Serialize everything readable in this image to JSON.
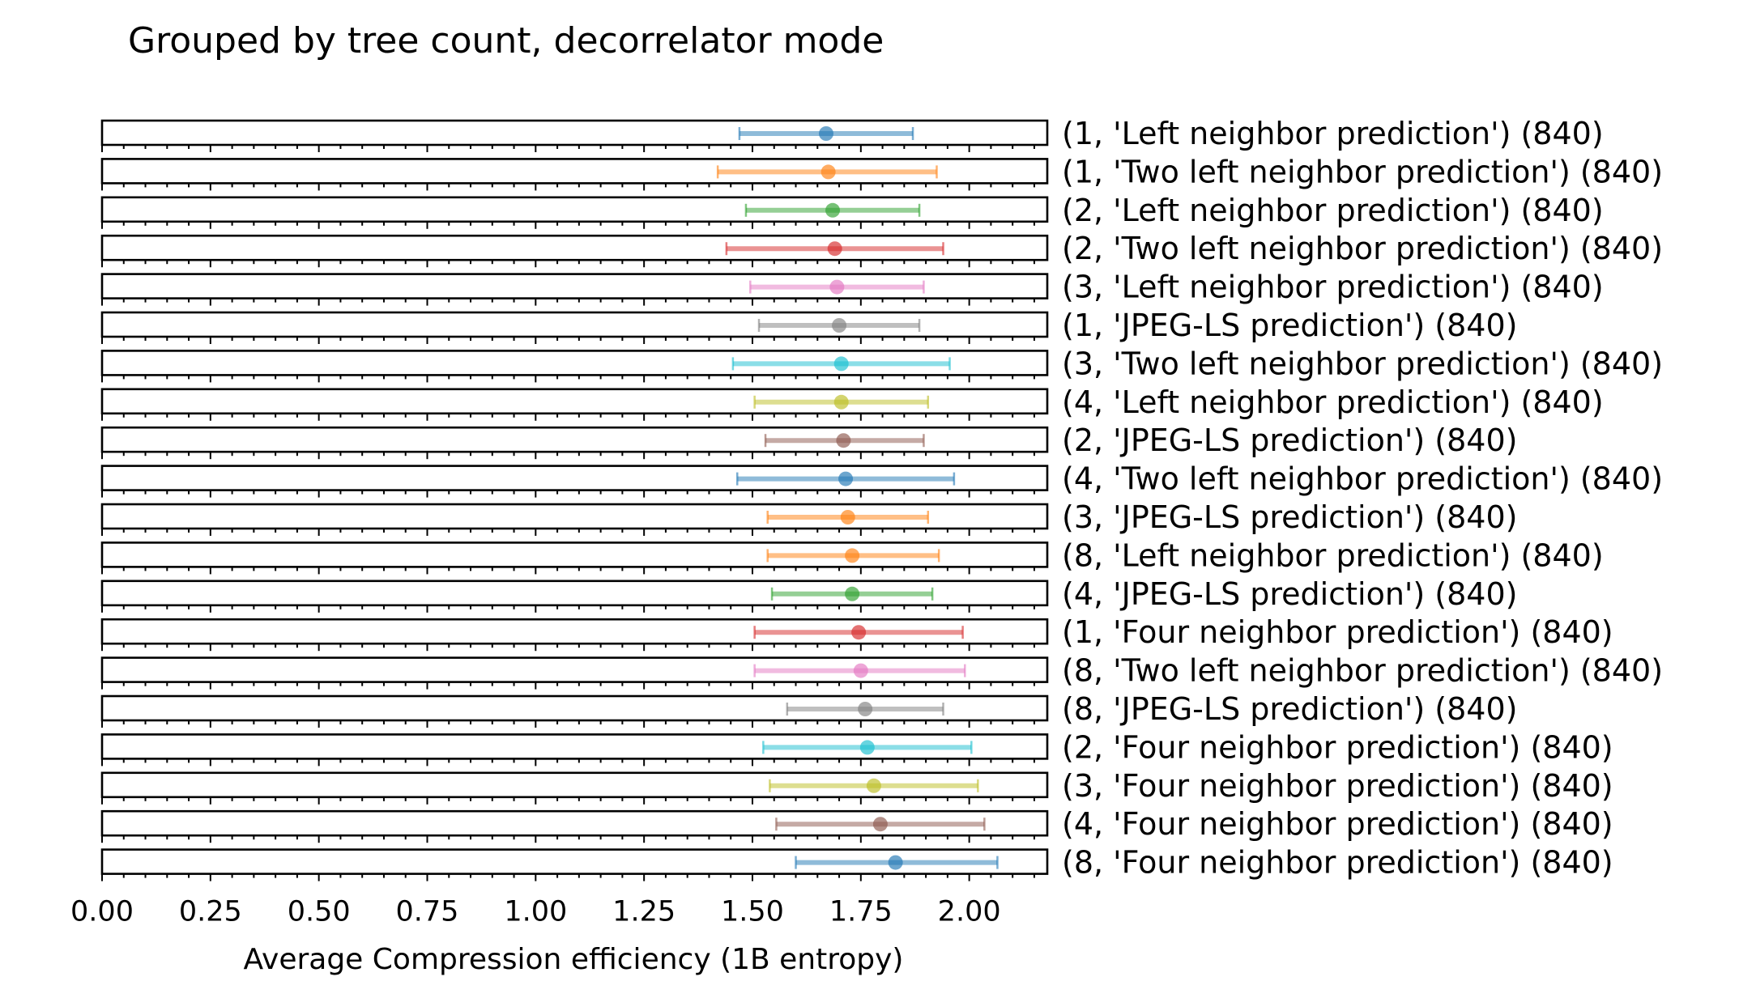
{
  "chart_data": {
    "type": "scatter",
    "title": "Grouped by tree count, decorrelator mode",
    "xlabel": "Average Compression efficiency (1B entropy)",
    "xlim": [
      0,
      2.18
    ],
    "x_ticks": [
      "0.00",
      "0.25",
      "0.50",
      "0.75",
      "1.00",
      "1.25",
      "1.50",
      "1.75",
      "2.00"
    ],
    "x_tick_values": [
      0,
      0.25,
      0.5,
      0.75,
      1.0,
      1.25,
      1.5,
      1.75,
      2.0
    ],
    "grid": false,
    "rows": [
      {
        "label": "(1, 'Left neighbor prediction') (840)",
        "mean": 1.67,
        "low": 1.47,
        "high": 1.87,
        "color": "#1f77b4"
      },
      {
        "label": "(1, 'Two left neighbor prediction') (840)",
        "mean": 1.675,
        "low": 1.42,
        "high": 1.925,
        "color": "#ff7f0e"
      },
      {
        "label": "(2, 'Left neighbor prediction') (840)",
        "mean": 1.685,
        "low": 1.485,
        "high": 1.885,
        "color": "#2ca02c"
      },
      {
        "label": "(2, 'Two left neighbor prediction') (840)",
        "mean": 1.69,
        "low": 1.44,
        "high": 1.94,
        "color": "#d62728"
      },
      {
        "label": "(3, 'Left neighbor prediction') (840)",
        "mean": 1.695,
        "low": 1.495,
        "high": 1.895,
        "color": "#e377c2"
      },
      {
        "label": "(1, 'JPEG-LS prediction') (840)",
        "mean": 1.7,
        "low": 1.515,
        "high": 1.885,
        "color": "#7f7f7f"
      },
      {
        "label": "(3, 'Two left neighbor prediction') (840)",
        "mean": 1.705,
        "low": 1.455,
        "high": 1.955,
        "color": "#17becf"
      },
      {
        "label": "(4, 'Left neighbor prediction') (840)",
        "mean": 1.705,
        "low": 1.505,
        "high": 1.905,
        "color": "#bcbd22"
      },
      {
        "label": "(2, 'JPEG-LS prediction') (840)",
        "mean": 1.71,
        "low": 1.53,
        "high": 1.895,
        "color": "#8c564b"
      },
      {
        "label": "(4, 'Two left neighbor prediction') (840)",
        "mean": 1.715,
        "low": 1.465,
        "high": 1.965,
        "color": "#1f77b4"
      },
      {
        "label": "(3, 'JPEG-LS prediction') (840)",
        "mean": 1.72,
        "low": 1.535,
        "high": 1.905,
        "color": "#ff7f0e"
      },
      {
        "label": "(8, 'Left neighbor prediction') (840)",
        "mean": 1.73,
        "low": 1.535,
        "high": 1.93,
        "color": "#ff7f0e"
      },
      {
        "label": "(4, 'JPEG-LS prediction') (840)",
        "mean": 1.73,
        "low": 1.545,
        "high": 1.915,
        "color": "#2ca02c"
      },
      {
        "label": "(1, 'Four neighbor prediction') (840)",
        "mean": 1.745,
        "low": 1.505,
        "high": 1.985,
        "color": "#d62728"
      },
      {
        "label": "(8, 'Two left neighbor prediction') (840)",
        "mean": 1.75,
        "low": 1.505,
        "high": 1.99,
        "color": "#e377c2"
      },
      {
        "label": "(8, 'JPEG-LS prediction') (840)",
        "mean": 1.76,
        "low": 1.58,
        "high": 1.94,
        "color": "#7f7f7f"
      },
      {
        "label": "(2, 'Four neighbor prediction') (840)",
        "mean": 1.765,
        "low": 1.525,
        "high": 2.005,
        "color": "#17becf"
      },
      {
        "label": "(3, 'Four neighbor prediction') (840)",
        "mean": 1.78,
        "low": 1.54,
        "high": 2.02,
        "color": "#bcbd22"
      },
      {
        "label": "(4, 'Four neighbor prediction') (840)",
        "mean": 1.795,
        "low": 1.555,
        "high": 2.035,
        "color": "#8c564b"
      },
      {
        "label": "(8, 'Four neighbor prediction') (840)",
        "mean": 1.83,
        "low": 1.6,
        "high": 2.065,
        "color": "#1f77b4"
      }
    ]
  }
}
